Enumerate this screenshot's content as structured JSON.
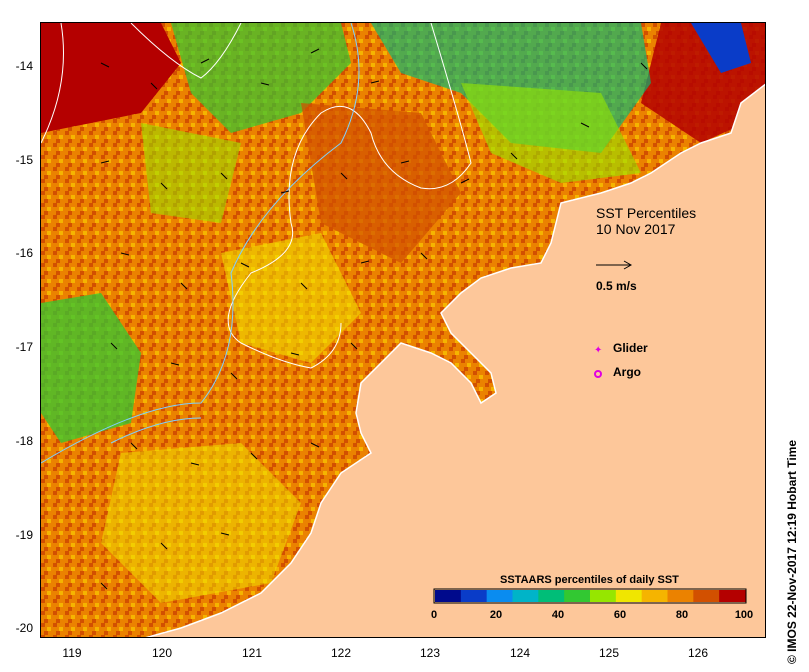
{
  "map": {
    "title_line1": "SST Percentiles",
    "title_line2": "10 Nov 2017",
    "vector_scale_label": "0.5 m/s",
    "legend": [
      {
        "name": "Glider",
        "color": "#e000e0"
      },
      {
        "name": "Argo",
        "color": "#e000e0"
      }
    ],
    "y_ticks": [
      "-14",
      "-15",
      "-16",
      "-17",
      "-18",
      "-19",
      "-20"
    ],
    "x_ticks": [
      "119",
      "120",
      "121",
      "122",
      "123",
      "124",
      "125",
      "126"
    ],
    "land_color": "#fdc79a",
    "colorbar": {
      "title": "SSTAARS percentiles of daily SST",
      "ticks": [
        "0",
        "20",
        "40",
        "60",
        "80",
        "100"
      ],
      "colors": [
        "#000a8c",
        "#0a3cc8",
        "#0a8cf0",
        "#00b4c8",
        "#00be78",
        "#32c832",
        "#96e600",
        "#f0e600",
        "#f5b400",
        "#eb8200",
        "#d25000",
        "#b40000"
      ]
    },
    "credit": "© IMOS 22-Nov-2017 12:19 Hobart Time"
  }
}
